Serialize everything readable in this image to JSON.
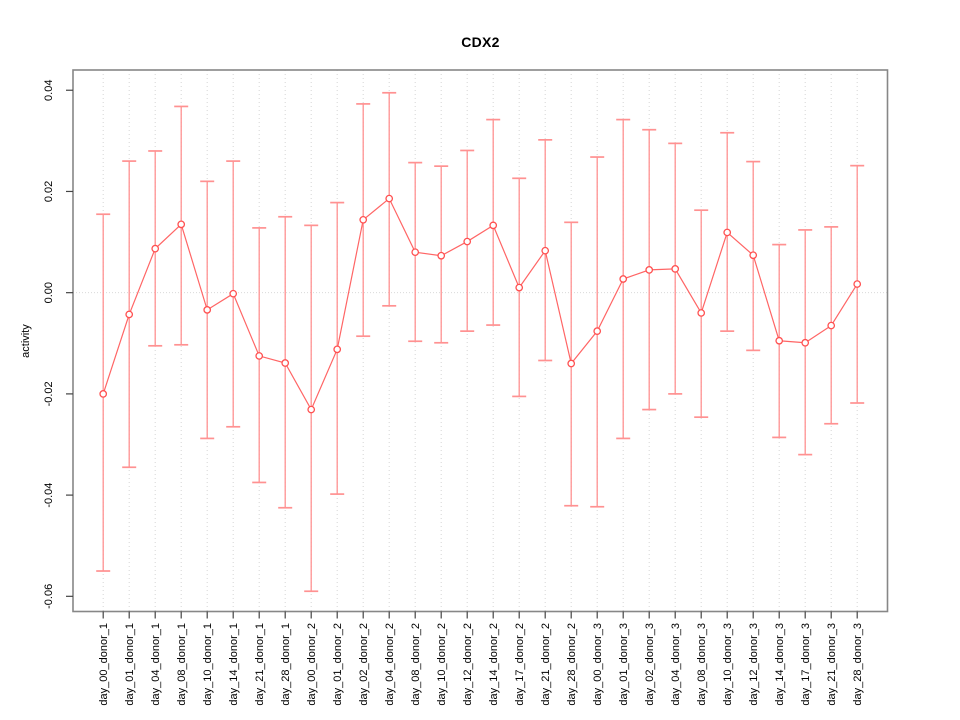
{
  "chart_data": {
    "type": "line",
    "title": "CDX2",
    "xlabel": "",
    "ylabel": "activity",
    "ylim": [
      -0.063,
      0.044
    ],
    "yticks": [
      0.04,
      0.02,
      0.0,
      -0.02,
      -0.04,
      -0.06
    ],
    "ytick_labels": [
      "0.04",
      "0.02",
      "0.00",
      "-0.02",
      "-0.04",
      "-0.06"
    ],
    "grid": "vertical dotted gridline at each category; horizontal dotted line at y=0",
    "legend": "none",
    "marker": "open-circle",
    "error_bars": true,
    "colors": {
      "series_line": "#ff6565",
      "marker_stroke": "#ff5050",
      "error_bar": "#ff9191",
      "gridline": "#d6d6d6",
      "zero_line": "#d9d9d9",
      "plot_border": "#878787"
    },
    "categories": [
      "day_00_donor_1",
      "day_01_donor_1",
      "day_04_donor_1",
      "day_08_donor_1",
      "day_10_donor_1",
      "day_14_donor_1",
      "day_21_donor_1",
      "day_28_donor_1",
      "day_00_donor_2",
      "day_01_donor_2",
      "day_02_donor_2",
      "day_04_donor_2",
      "day_08_donor_2",
      "day_10_donor_2",
      "day_12_donor_2",
      "day_14_donor_2",
      "day_17_donor_2",
      "day_21_donor_2",
      "day_28_donor_2",
      "day_00_donor_3",
      "day_01_donor_3",
      "day_02_donor_3",
      "day_04_donor_3",
      "day_08_donor_3",
      "day_10_donor_3",
      "day_12_donor_3",
      "day_14_donor_3",
      "day_17_donor_3",
      "day_21_donor_3",
      "day_28_donor_3"
    ],
    "values": [
      -0.02,
      -0.0043,
      0.0087,
      0.0135,
      -0.0034,
      -0.0002,
      -0.0125,
      -0.0139,
      -0.0231,
      -0.0112,
      0.0144,
      0.0186,
      0.008,
      0.0073,
      0.0101,
      0.0133,
      0.001,
      0.0083,
      -0.014,
      -0.0076,
      0.0027,
      0.0045,
      0.0047,
      -0.004,
      0.0119,
      0.0074,
      -0.0095,
      -0.0099,
      -0.0065,
      0.0017
    ],
    "error_low": [
      -0.055,
      -0.0345,
      -0.0105,
      -0.0103,
      -0.0288,
      -0.0265,
      -0.0375,
      -0.0425,
      -0.059,
      -0.0398,
      -0.0086,
      -0.0026,
      -0.0096,
      -0.0099,
      -0.0076,
      -0.0064,
      -0.0205,
      -0.0134,
      -0.0421,
      -0.0423,
      -0.0288,
      -0.0231,
      -0.02,
      -0.0246,
      -0.0076,
      -0.0114,
      -0.0286,
      -0.032,
      -0.0259,
      -0.0218
    ],
    "error_high": [
      0.0155,
      0.026,
      0.028,
      0.0368,
      0.022,
      0.026,
      0.0128,
      0.015,
      0.0133,
      0.0178,
      0.0373,
      0.0395,
      0.0257,
      0.025,
      0.0281,
      0.0342,
      0.0226,
      0.0302,
      0.0139,
      0.0268,
      0.0342,
      0.0322,
      0.0295,
      0.0163,
      0.0316,
      0.0259,
      0.0095,
      0.0124,
      0.013,
      0.0251
    ]
  }
}
